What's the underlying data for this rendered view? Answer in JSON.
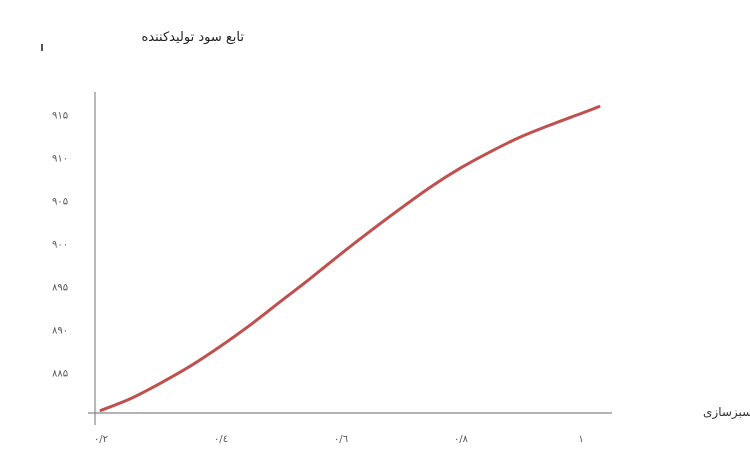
{
  "chart_data": {
    "type": "line",
    "title": "تابع سود تولیدکننده",
    "xlabel": "ضریب سبزسازی",
    "ylabel": "",
    "x_ticks": [
      {
        "value": 0.2,
        "label": "۰/۲"
      },
      {
        "value": 0.4,
        "label": "۰/٤"
      },
      {
        "value": 0.6,
        "label": "۰/٦"
      },
      {
        "value": 0.8,
        "label": "۰/۸"
      },
      {
        "value": 1.0,
        "label": "۱"
      }
    ],
    "y_ticks": [
      {
        "value": 885,
        "label": "۸۸۵"
      },
      {
        "value": 890,
        "label": "۸۹۰"
      },
      {
        "value": 895,
        "label": "۸۹۵"
      },
      {
        "value": 900,
        "label": "۹۰۰"
      },
      {
        "value": 905,
        "label": "۹۰۵"
      },
      {
        "value": 910,
        "label": "۹۱۰"
      },
      {
        "value": 915,
        "label": "۹۱۵"
      }
    ],
    "xlim": [
      0.19,
      1.04
    ],
    "ylim": [
      880.3,
      917.6
    ],
    "grid": false,
    "line_color": "#c0504d",
    "series": [
      {
        "x": [
          0.2,
          0.25,
          0.3,
          0.35,
          0.4,
          0.45,
          0.5,
          0.55,
          0.6,
          0.65,
          0.7,
          0.75,
          0.8,
          0.85,
          0.9,
          0.95,
          1.0,
          1.03
        ],
        "values": [
          880.6,
          882.0,
          883.8,
          885.8,
          888.1,
          890.6,
          893.3,
          896.0,
          898.8,
          901.5,
          904.1,
          906.6,
          908.8,
          910.7,
          912.4,
          913.8,
          915.1,
          915.9
        ]
      }
    ]
  }
}
